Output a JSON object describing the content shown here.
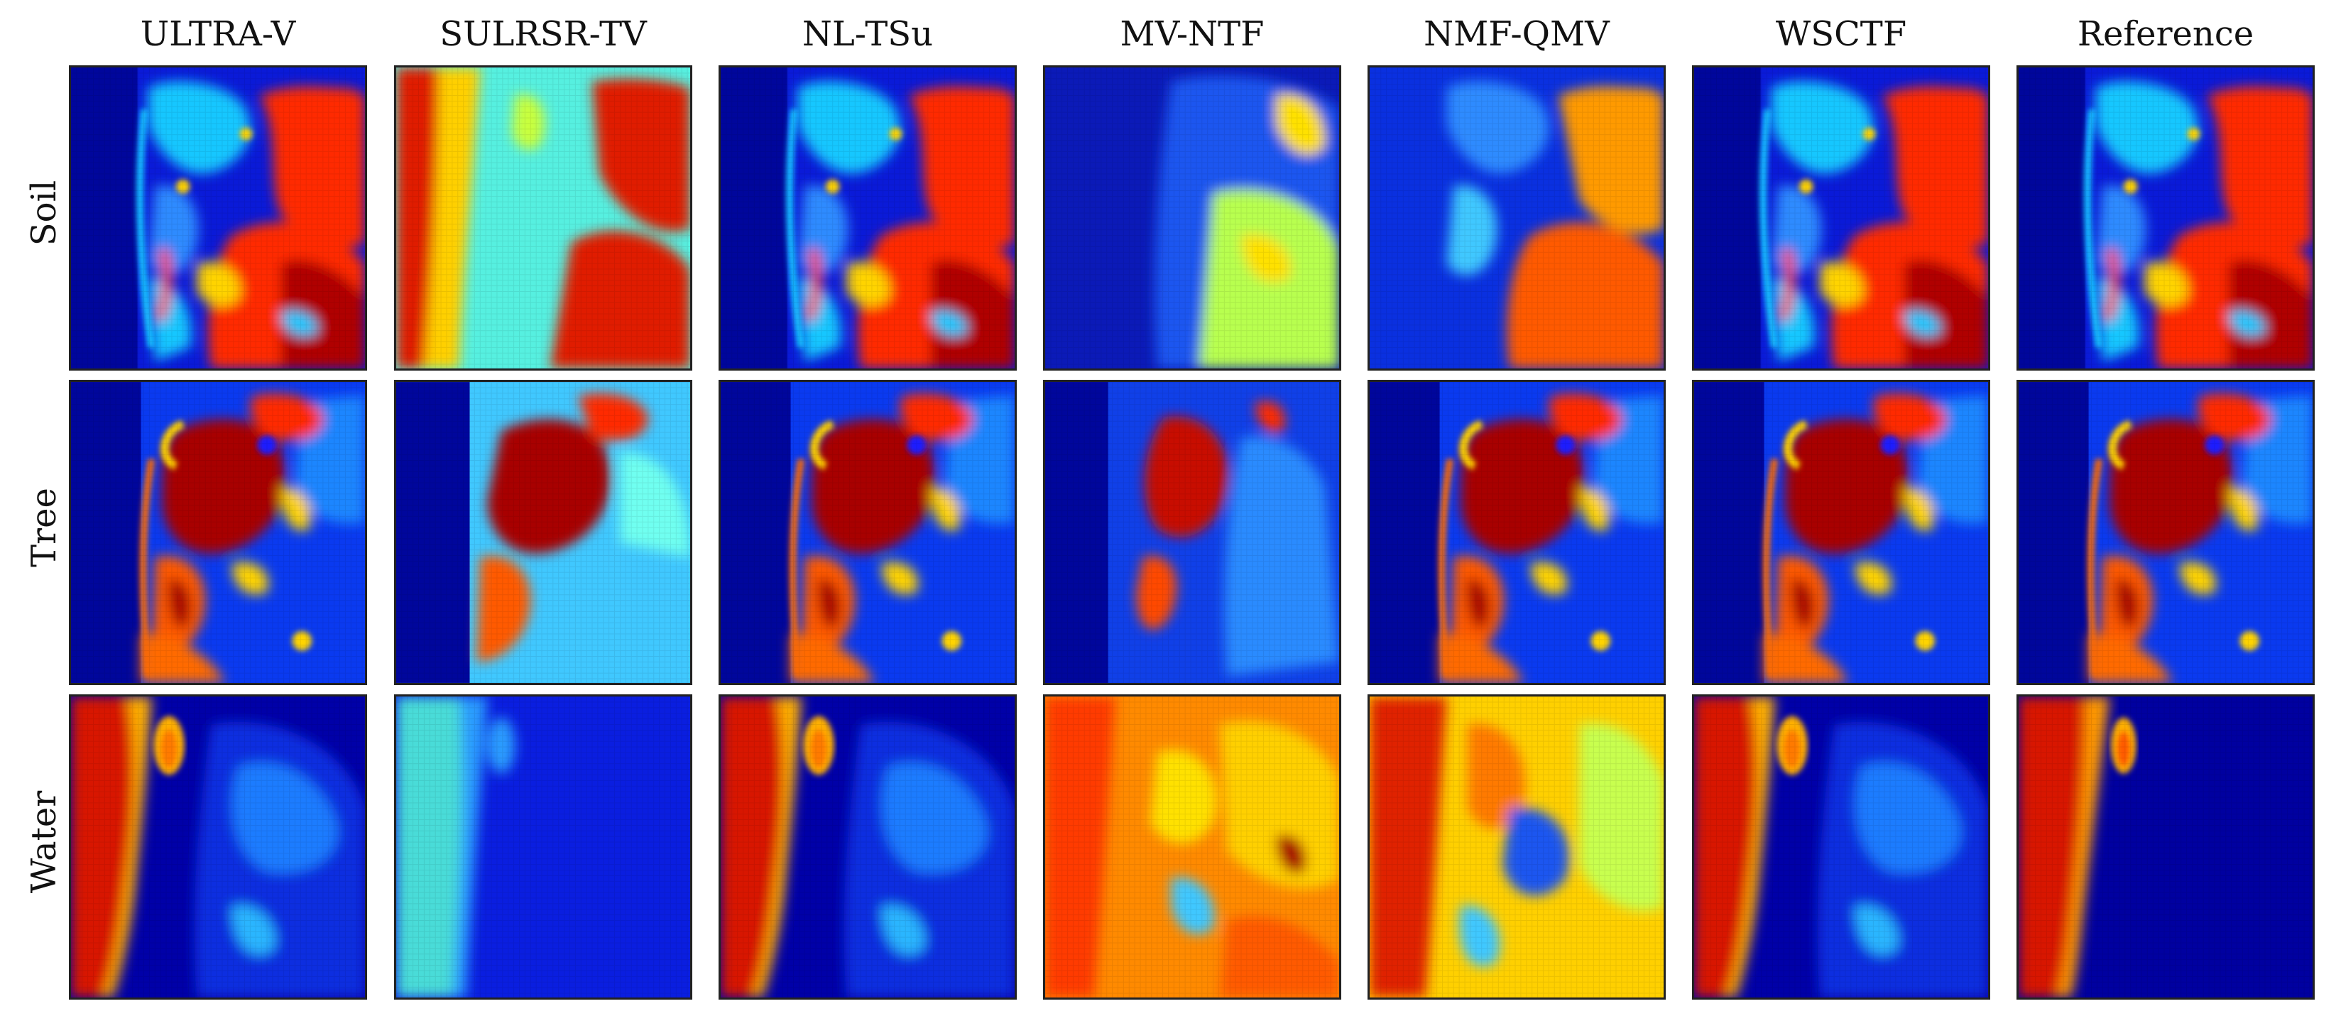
{
  "columns": [
    "ULTRA-V",
    "SULRSR-TV",
    "NL-TSu",
    "MV-NTF",
    "NMF-QMV",
    "WSCTF",
    "Reference"
  ],
  "rows": [
    "Soil",
    "Tree",
    "Water"
  ],
  "colormap": {
    "name": "jet",
    "stops": [
      "#00008f",
      "#0000ff",
      "#00a0ff",
      "#40ffe0",
      "#c0ff40",
      "#ffd000",
      "#ff4000",
      "#a00000"
    ]
  },
  "panel_colors": {
    "soil": {
      "background": "#0a1ad8",
      "land": "#ff2a00",
      "coast": "#19c7ff"
    },
    "tree": {
      "background": "#0a3af0",
      "canopy": "#a80000",
      "edges": "#ffd400"
    },
    "water": {
      "background": "#0000a8",
      "sea": "#d81800",
      "shore": "#ffd400"
    },
    "sulrsr_tv": {
      "background": "#56f0e0",
      "accent": "#e01a00"
    },
    "mv_ntf": {
      "background": "#1040e8",
      "accent": "#ffe100"
    }
  }
}
